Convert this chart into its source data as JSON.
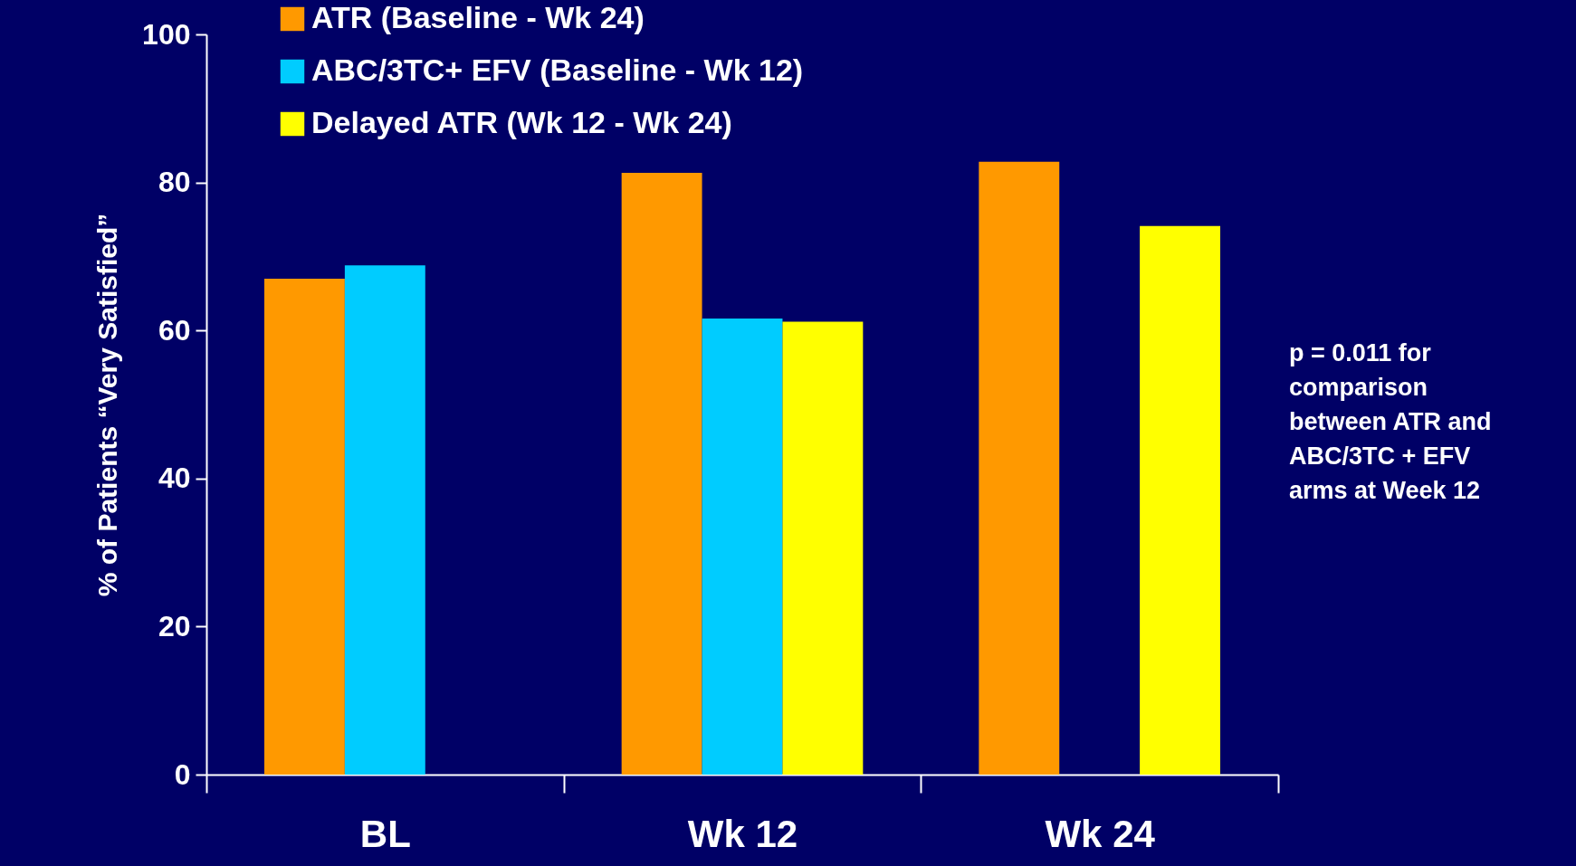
{
  "chart_data": {
    "type": "bar",
    "ylabel": "% of Patients “Very Satisfied”",
    "categories": [
      "BL",
      "Wk 12",
      "Wk 24"
    ],
    "series": [
      {
        "name": "ATR (Baseline - Wk 24)",
        "color": "#ff9900",
        "values": [
          67.0,
          81.3,
          82.8
        ]
      },
      {
        "name": "ABC/3TC+ EFV (Baseline - Wk 12)",
        "color": "#00ccff",
        "values": [
          68.8,
          61.6,
          null
        ]
      },
      {
        "name": "Delayed ATR (Wk 12 - Wk 24)",
        "color": "#ffff00",
        "values": [
          null,
          61.2,
          74.1
        ]
      }
    ],
    "ylim": [
      0,
      100
    ],
    "yticks": [
      0,
      20,
      40,
      60,
      80,
      100
    ],
    "grid": false,
    "legend": "top left",
    "annotations": [
      "p = 0.011 for\ncomparison\nbetween ATR and\nABC/3TC + EFV\narms at Week 12"
    ]
  }
}
